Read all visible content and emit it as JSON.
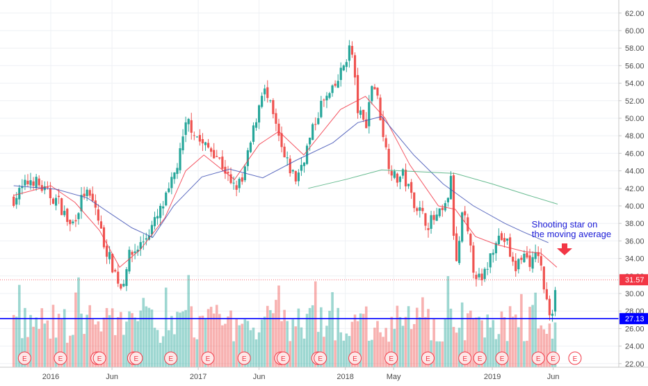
{
  "chart_data": {
    "type": "candlestick",
    "yticks": [
      "62.00",
      "60.00",
      "58.00",
      "56.00",
      "54.00",
      "52.00",
      "50.00",
      "48.00",
      "46.00",
      "44.00",
      "42.00",
      "40.00",
      "38.00",
      "36.00",
      "34.00",
      "32.00",
      "30.00",
      "28.00",
      "26.00",
      "24.00",
      "22.00"
    ],
    "ylim": [
      21,
      63
    ],
    "xticks": [
      "2016",
      "Jun",
      "2017",
      "Jun",
      "2018",
      "May",
      "2019",
      "Jun"
    ],
    "price_points": [
      [
        "2015-10-01",
        40.8
      ],
      [
        "2015-11-15",
        43.2
      ],
      [
        "2015-12-20",
        41.5
      ],
      [
        "2016-01-20",
        40.5
      ],
      [
        "2016-02-20",
        37.5
      ],
      [
        "2016-03-25",
        41.6
      ],
      [
        "2016-04-20",
        40.0
      ],
      [
        "2016-05-10",
        36.0
      ],
      [
        "2016-05-30",
        33.5
      ],
      [
        "2016-06-25",
        30.5
      ],
      [
        "2016-07-10",
        34.0
      ],
      [
        "2016-08-15",
        35.8
      ],
      [
        "2016-09-20",
        38.5
      ],
      [
        "2016-10-20",
        41.5
      ],
      [
        "2016-11-15",
        45.5
      ],
      [
        "2016-12-05",
        49.8
      ],
      [
        "2017-01-10",
        47.0
      ],
      [
        "2017-02-10",
        46.2
      ],
      [
        "2017-03-10",
        44.0
      ],
      [
        "2017-03-25",
        42.0
      ],
      [
        "2017-04-20",
        42.7
      ],
      [
        "2017-05-20",
        49.0
      ],
      [
        "2017-06-10",
        53.6
      ],
      [
        "2017-07-01",
        51.0
      ],
      [
        "2017-08-01",
        45.5
      ],
      [
        "2017-09-01",
        43.0
      ],
      [
        "2017-10-01",
        47.0
      ],
      [
        "2017-11-01",
        51.5
      ],
      [
        "2017-12-01",
        53.0
      ],
      [
        "2017-12-20",
        55.0
      ],
      [
        "2018-01-15",
        58.5
      ],
      [
        "2018-02-01",
        51.0
      ],
      [
        "2018-02-20",
        49.0
      ],
      [
        "2018-03-10",
        54.5
      ],
      [
        "2018-03-25",
        51.5
      ],
      [
        "2018-04-15",
        45.5
      ],
      [
        "2018-05-05",
        43.0
      ],
      [
        "2018-05-25",
        43.5
      ],
      [
        "2018-06-15",
        41.0
      ],
      [
        "2018-07-10",
        39.0
      ],
      [
        "2018-07-25",
        38.0
      ],
      [
        "2018-08-15",
        38.6
      ],
      [
        "2018-09-05",
        39.5
      ],
      [
        "2018-09-22",
        43.2
      ],
      [
        "2018-10-01",
        32.0
      ],
      [
        "2018-10-20",
        39.5
      ],
      [
        "2018-11-15",
        33.0
      ],
      [
        "2018-12-05",
        31.0
      ],
      [
        "2018-12-25",
        34.0
      ],
      [
        "2019-01-10",
        36.5
      ],
      [
        "2019-02-05",
        36.0
      ],
      [
        "2019-02-25",
        32.5
      ],
      [
        "2019-03-15",
        34.5
      ],
      [
        "2019-04-10",
        33.5
      ],
      [
        "2019-04-25",
        34.7
      ],
      [
        "2019-05-15",
        29.0
      ],
      [
        "2019-05-28",
        27.2
      ],
      [
        "2019-06-03",
        30.5
      ],
      [
        "2019-06-10",
        31.57
      ]
    ],
    "series": [
      {
        "name": "",
        "color": "#f23645",
        "points": [
          [
            "2015-10-01",
            41.2
          ],
          [
            "2016-01-01",
            42.3
          ],
          [
            "2016-03-01",
            40.4
          ],
          [
            "2016-05-01",
            37.2
          ],
          [
            "2016-06-20",
            33.0
          ],
          [
            "2016-08-10",
            35.0
          ],
          [
            "2016-10-10",
            38.6
          ],
          [
            "2016-12-01",
            44.0
          ],
          [
            "2017-01-15",
            45.8
          ],
          [
            "2017-04-01",
            43.0
          ],
          [
            "2017-06-01",
            47.0
          ],
          [
            "2017-07-20",
            48.5
          ],
          [
            "2017-09-20",
            45.8
          ],
          [
            "2017-12-20",
            51.0
          ],
          [
            "2018-02-20",
            52.5
          ],
          [
            "2018-04-10",
            50.0
          ],
          [
            "2018-06-10",
            44.7
          ],
          [
            "2018-08-20",
            40.0
          ],
          [
            "2018-10-01",
            39.6
          ],
          [
            "2018-11-20",
            36.5
          ],
          [
            "2019-01-10",
            35.6
          ],
          [
            "2019-03-20",
            34.8
          ],
          [
            "2019-05-01",
            34.6
          ],
          [
            "2019-06-10",
            33.0
          ]
        ]
      },
      {
        "name": "",
        "color": "#3f51b5",
        "points": [
          [
            "2015-10-01",
            42.3
          ],
          [
            "2016-01-15",
            41.9
          ],
          [
            "2016-04-01",
            40.9
          ],
          [
            "2016-06-01",
            39.0
          ],
          [
            "2016-07-20",
            37.5
          ],
          [
            "2016-09-10",
            36.4
          ],
          [
            "2016-11-01",
            40.0
          ],
          [
            "2017-01-10",
            43.3
          ],
          [
            "2017-03-20",
            44.2
          ],
          [
            "2017-06-10",
            43.2
          ],
          [
            "2017-09-01",
            45.2
          ],
          [
            "2017-12-01",
            47.2
          ],
          [
            "2018-02-01",
            49.5
          ],
          [
            "2018-04-01",
            50.2
          ],
          [
            "2018-06-20",
            45.8
          ],
          [
            "2018-09-01",
            42.5
          ],
          [
            "2018-11-15",
            40.0
          ],
          [
            "2019-02-01",
            38.0
          ],
          [
            "2019-03-20",
            37.0
          ],
          [
            "2019-05-20",
            35.8
          ]
        ]
      },
      {
        "name": "",
        "color": "#4caf7d",
        "points": [
          [
            "2017-10-01",
            42.0
          ],
          [
            "2018-01-01",
            43.0
          ],
          [
            "2018-04-01",
            44.1
          ],
          [
            "2018-07-01",
            43.9
          ],
          [
            "2018-10-01",
            43.7
          ],
          [
            "2019-01-01",
            42.5
          ],
          [
            "2019-04-01",
            41.2
          ],
          [
            "2019-06-12",
            40.2
          ]
        ]
      }
    ],
    "support_level": {
      "value": 27.13,
      "label": "27.13",
      "color": "#0000ff"
    },
    "last_price": {
      "value": 31.57,
      "label": "31.57",
      "color": "#f23645"
    },
    "annotation": {
      "lines": [
        "Shooting star on",
        "the moving average"
      ],
      "color": "#1a1ad6"
    },
    "earnings_marker": "E",
    "earnings_dates": [
      "2015-10-28",
      "2016-01-25",
      "2016-04-25",
      "2016-05-01",
      "2016-07-25",
      "2016-07-31",
      "2016-10-25",
      "2017-01-25",
      "2017-04-25",
      "2017-07-25",
      "2017-07-31",
      "2017-10-25",
      "2017-10-31",
      "2018-01-25",
      "2018-04-25",
      "2018-07-25",
      "2018-10-25",
      "2018-12-01",
      "2019-01-25",
      "2019-04-25",
      "2019-06-01",
      "2019-07-25"
    ],
    "grid": true
  }
}
